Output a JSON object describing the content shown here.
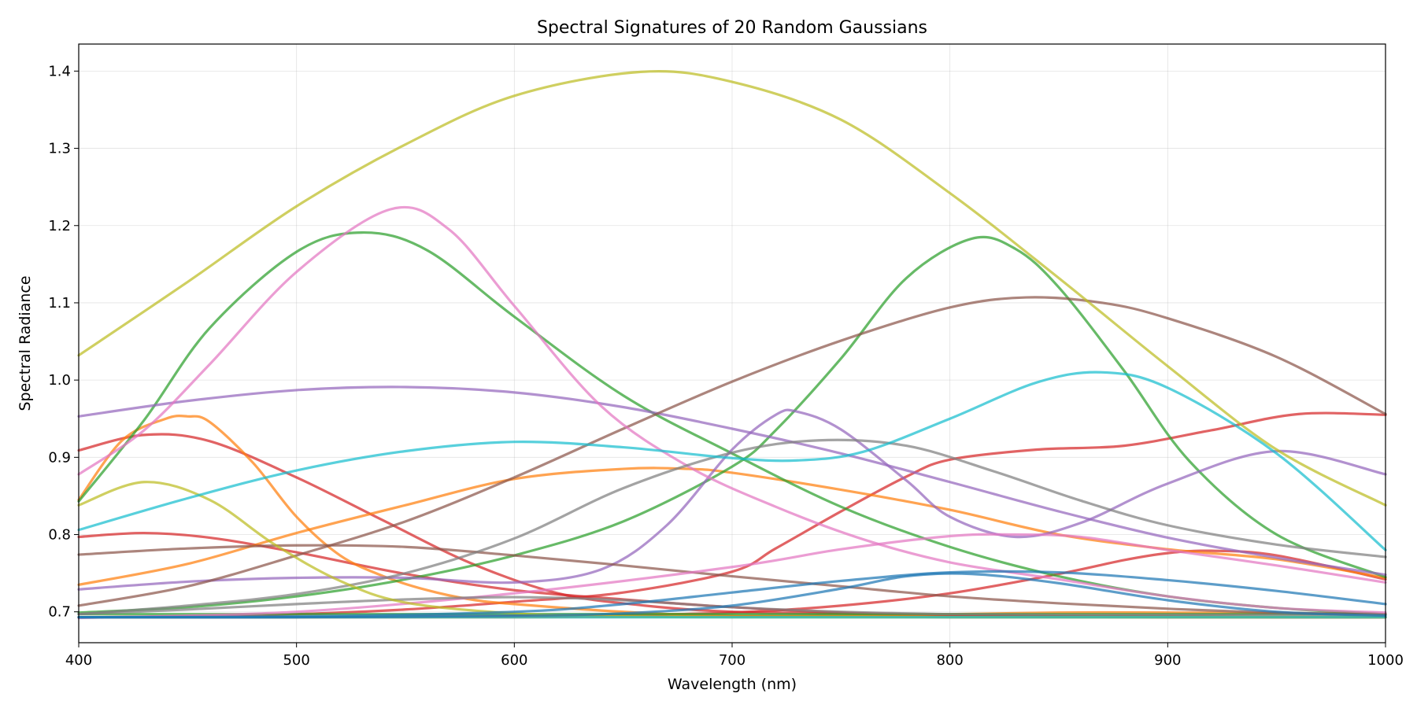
{
  "chart_data": {
    "type": "line",
    "title": "Spectral Signatures of 20 Random Gaussians",
    "xlabel": "Wavelength (nm)",
    "ylabel": "Spectral Radiance",
    "xlim": [
      400,
      1000
    ],
    "ylim": [
      0.66,
      1.435
    ],
    "xticks": [
      "400",
      "500",
      "600",
      "700",
      "800",
      "900",
      "1000"
    ],
    "yticks": [
      "0.7",
      "0.8",
      "0.9",
      "1.0",
      "1.1",
      "1.2",
      "1.3",
      "1.4"
    ],
    "grid": true,
    "series": [
      {
        "color": "#d62728",
        "x": [
          400,
          430,
          460,
          500,
          540,
          580,
          620,
          660,
          700,
          750,
          800,
          850,
          900,
          950,
          1000
        ],
        "y": [
          0.909,
          0.929,
          0.921,
          0.874,
          0.818,
          0.763,
          0.724,
          0.708,
          0.7,
          0.698,
          0.695,
          0.694,
          0.693,
          0.693,
          0.693
        ]
      },
      {
        "color": "#d62728",
        "x": [
          400,
          430,
          460,
          500,
          550,
          600,
          650,
          700,
          750,
          800,
          850,
          900,
          950,
          1000
        ],
        "y": [
          0.797,
          0.802,
          0.796,
          0.777,
          0.749,
          0.728,
          0.716,
          0.706,
          0.699,
          0.696,
          0.694,
          0.694,
          0.693,
          0.693
        ]
      },
      {
        "color": "#d62728",
        "x": [
          400,
          450,
          500,
          550,
          600,
          650,
          700,
          720,
          750,
          780,
          800,
          840,
          880,
          920,
          960,
          1000
        ],
        "y": [
          0.693,
          0.694,
          0.697,
          0.703,
          0.713,
          0.725,
          0.752,
          0.782,
          0.83,
          0.875,
          0.897,
          0.91,
          0.915,
          0.935,
          0.956,
          0.955
        ]
      },
      {
        "color": "#d62728",
        "x": [
          400,
          500,
          600,
          650,
          700,
          750,
          800,
          850,
          880,
          900,
          920,
          950,
          1000
        ],
        "y": [
          0.693,
          0.693,
          0.694,
          0.696,
          0.699,
          0.708,
          0.724,
          0.749,
          0.767,
          0.776,
          0.779,
          0.773,
          0.742
        ]
      },
      {
        "color": "#ff7f0e",
        "x": [
          400,
          420,
          440,
          450,
          460,
          480,
          500,
          520,
          540,
          560,
          580,
          600,
          650,
          700,
          800,
          1000
        ],
        "y": [
          0.845,
          0.922,
          0.95,
          0.953,
          0.946,
          0.893,
          0.823,
          0.773,
          0.746,
          0.728,
          0.716,
          0.71,
          0.7,
          0.695,
          0.693,
          0.693
        ]
      },
      {
        "color": "#ff7f0e",
        "x": [
          400,
          450,
          500,
          550,
          600,
          650,
          680,
          700,
          750,
          800,
          850,
          900,
          950,
          1000
        ],
        "y": [
          0.735,
          0.762,
          0.802,
          0.838,
          0.872,
          0.885,
          0.885,
          0.88,
          0.858,
          0.832,
          0.8,
          0.781,
          0.768,
          0.744
        ]
      },
      {
        "color": "#ff7f0e",
        "x": [
          400,
          500,
          600,
          700,
          800,
          850,
          900,
          950,
          1000
        ],
        "y": [
          0.693,
          0.693,
          0.693,
          0.694,
          0.697,
          0.699,
          0.699,
          0.698,
          0.697
        ]
      },
      {
        "color": "#2ca02c",
        "x": [
          400,
          430,
          460,
          500,
          530,
          560,
          600,
          650,
          700,
          750,
          800,
          850,
          900,
          950,
          1000
        ],
        "y": [
          0.843,
          0.948,
          1.067,
          1.166,
          1.191,
          1.168,
          1.082,
          0.98,
          0.905,
          0.836,
          0.784,
          0.746,
          0.72,
          0.705,
          0.697
        ]
      },
      {
        "color": "#2ca02c",
        "x": [
          400,
          450,
          500,
          550,
          600,
          650,
          700,
          720,
          750,
          780,
          810,
          830,
          850,
          880,
          910,
          950,
          1000
        ],
        "y": [
          0.699,
          0.706,
          0.72,
          0.742,
          0.773,
          0.817,
          0.888,
          0.935,
          1.028,
          1.132,
          1.183,
          1.17,
          1.12,
          1.012,
          0.895,
          0.8,
          0.745
        ]
      },
      {
        "color": "#2ca02c",
        "x": [
          400,
          500,
          600,
          700,
          800,
          900,
          950,
          1000
        ],
        "y": [
          0.697,
          0.697,
          0.697,
          0.697,
          0.697,
          0.697,
          0.697,
          0.697
        ]
      },
      {
        "color": "#9467bd",
        "x": [
          400,
          450,
          500,
          550,
          600,
          650,
          700,
          750,
          800,
          850,
          900,
          950,
          1000
        ],
        "y": [
          0.953,
          0.973,
          0.987,
          0.991,
          0.984,
          0.965,
          0.937,
          0.905,
          0.868,
          0.83,
          0.796,
          0.77,
          0.748
        ]
      },
      {
        "color": "#9467bd",
        "x": [
          400,
          450,
          500,
          550,
          600,
          640,
          670,
          700,
          720,
          730,
          750,
          780,
          800,
          830,
          860,
          900,
          950,
          1000
        ],
        "y": [
          0.729,
          0.739,
          0.744,
          0.744,
          0.738,
          0.755,
          0.812,
          0.91,
          0.955,
          0.959,
          0.936,
          0.87,
          0.823,
          0.797,
          0.815,
          0.866,
          0.908,
          0.878
        ]
      },
      {
        "color": "#8c564b",
        "x": [
          400,
          450,
          500,
          550,
          600,
          650,
          700,
          750,
          800,
          835,
          870,
          900,
          950,
          1000
        ],
        "y": [
          0.708,
          0.733,
          0.773,
          0.817,
          0.874,
          0.937,
          0.998,
          1.051,
          1.094,
          1.107,
          1.1,
          1.08,
          1.03,
          0.956
        ]
      },
      {
        "color": "#8c564b",
        "x": [
          400,
          450,
          500,
          550,
          600,
          650,
          700,
          750,
          800,
          850,
          900,
          950,
          1000
        ],
        "y": [
          0.774,
          0.782,
          0.786,
          0.784,
          0.773,
          0.76,
          0.746,
          0.733,
          0.72,
          0.711,
          0.704,
          0.699,
          0.697
        ]
      },
      {
        "color": "#e377c2",
        "x": [
          400,
          430,
          460,
          500,
          543,
          570,
          600,
          640,
          680,
          720,
          760,
          800,
          850,
          900,
          950,
          1000
        ],
        "y": [
          0.878,
          0.935,
          1.02,
          1.14,
          1.221,
          1.195,
          1.096,
          0.966,
          0.888,
          0.836,
          0.794,
          0.764,
          0.742,
          0.72,
          0.705,
          0.699
        ]
      },
      {
        "color": "#e377c2",
        "x": [
          400,
          500,
          600,
          700,
          750,
          800,
          830,
          860,
          900,
          950,
          1000
        ],
        "y": [
          0.692,
          0.7,
          0.724,
          0.758,
          0.781,
          0.798,
          0.8,
          0.797,
          0.78,
          0.76,
          0.738
        ]
      },
      {
        "color": "#7f7f7f",
        "x": [
          400,
          450,
          500,
          550,
          600,
          650,
          700,
          740,
          780,
          820,
          860,
          900,
          950,
          1000
        ],
        "y": [
          0.697,
          0.708,
          0.723,
          0.75,
          0.795,
          0.86,
          0.906,
          0.922,
          0.915,
          0.882,
          0.844,
          0.812,
          0.787,
          0.771
        ]
      },
      {
        "color": "#7f7f7f",
        "x": [
          400,
          450,
          500,
          550,
          600,
          650,
          700,
          750,
          800,
          850,
          900,
          1000
        ],
        "y": [
          0.697,
          0.703,
          0.71,
          0.716,
          0.719,
          0.715,
          0.706,
          0.7,
          0.697,
          0.696,
          0.696,
          0.696
        ]
      },
      {
        "color": "#bcbd22",
        "x": [
          400,
          450,
          500,
          550,
          600,
          658,
          700,
          750,
          800,
          850,
          900,
          950,
          1000
        ],
        "y": [
          1.032,
          1.127,
          1.225,
          1.305,
          1.368,
          1.399,
          1.386,
          1.337,
          1.242,
          1.132,
          1.018,
          0.91,
          0.838
        ]
      },
      {
        "color": "#bcbd22",
        "x": [
          400,
          430,
          460,
          490,
          520,
          550,
          600,
          650,
          700,
          800,
          1000
        ],
        "y": [
          0.838,
          0.868,
          0.845,
          0.787,
          0.74,
          0.712,
          0.698,
          0.694,
          0.693,
          0.693,
          0.693
        ]
      },
      {
        "color": "#17becf",
        "x": [
          400,
          450,
          500,
          550,
          600,
          650,
          700,
          730,
          760,
          800,
          840,
          870,
          900,
          950,
          1000
        ],
        "y": [
          0.806,
          0.847,
          0.883,
          0.908,
          0.92,
          0.913,
          0.899,
          0.896,
          0.907,
          0.95,
          0.997,
          1.01,
          0.99,
          0.905,
          0.78
        ]
      },
      {
        "color": "#17becf",
        "x": [
          400,
          500,
          600,
          700,
          800,
          900,
          1000
        ],
        "y": [
          0.693,
          0.693,
          0.693,
          0.693,
          0.693,
          0.693,
          0.693
        ]
      },
      {
        "color": "#1f77b4",
        "x": [
          400,
          500,
          600,
          650,
          700,
          750,
          800,
          850,
          900,
          950,
          1000
        ],
        "y": [
          0.693,
          0.694,
          0.7,
          0.71,
          0.725,
          0.74,
          0.751,
          0.751,
          0.741,
          0.727,
          0.71
        ]
      },
      {
        "color": "#1f77b4",
        "x": [
          400,
          500,
          600,
          650,
          700,
          750,
          780,
          810,
          850,
          900,
          950,
          1000
        ],
        "y": [
          0.693,
          0.693,
          0.695,
          0.698,
          0.708,
          0.73,
          0.746,
          0.749,
          0.737,
          0.715,
          0.7,
          0.695
        ]
      }
    ]
  }
}
